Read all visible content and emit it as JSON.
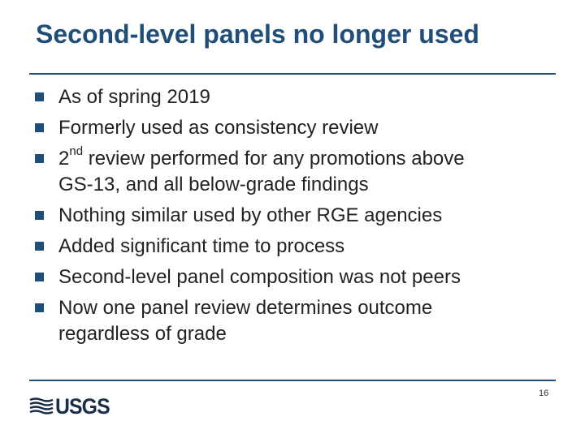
{
  "slide": {
    "title": "Second-level panels no longer used",
    "page_number": "16",
    "logo_text": "USGS",
    "accent_color": "#1f4e79"
  },
  "bullets": [
    {
      "text": "As of spring 2019"
    },
    {
      "text": "Formerly used as consistency review"
    },
    {
      "lead": "2",
      "sup": "nd",
      "text": " review performed for any promotions above",
      "cont": "GS-13, and all below-grade findings"
    },
    {
      "text": "Nothing similar used by other RGE agencies"
    },
    {
      "text": "Added significant time to process"
    },
    {
      "text": "Second-level panel composition was not peers"
    },
    {
      "text": "Now one panel review determines outcome",
      "cont": "regardless of grade"
    }
  ]
}
